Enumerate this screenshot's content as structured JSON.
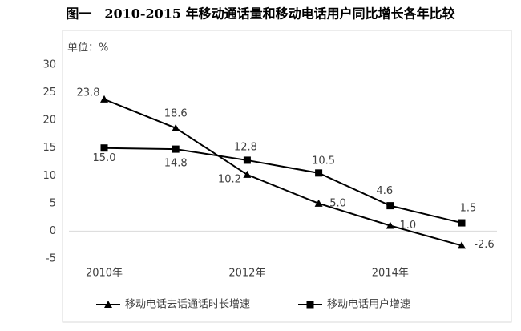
{
  "chart_data": {
    "type": "line",
    "title": "图一　2010-2015 年移动通话量和移动电话用户同比增长各年比较",
    "unit_label": "单位：%",
    "categories": [
      "2010年",
      null,
      "2012年",
      null,
      "2014年",
      null
    ],
    "series": [
      {
        "name": "移动电话去话通话时长增速",
        "color": "#000000",
        "marker": "triangle",
        "values": [
          23.8,
          18.6,
          10.2,
          5.0,
          1.0,
          -2.6
        ],
        "value_labels": [
          "23.8",
          "18.6",
          "10.2",
          "5.0",
          "1.0",
          "-2.6"
        ]
      },
      {
        "name": "移动电话用户增速",
        "color": "#000000",
        "marker": "square",
        "values": [
          15.0,
          14.8,
          12.8,
          10.5,
          4.6,
          1.5
        ],
        "value_labels": [
          "15.0",
          "14.8",
          "12.8",
          "10.5",
          "4.6",
          "1.5"
        ]
      }
    ],
    "ylim": [
      -5,
      30
    ],
    "yticks": [
      -5,
      0,
      5,
      10,
      15,
      20,
      25,
      30
    ]
  }
}
